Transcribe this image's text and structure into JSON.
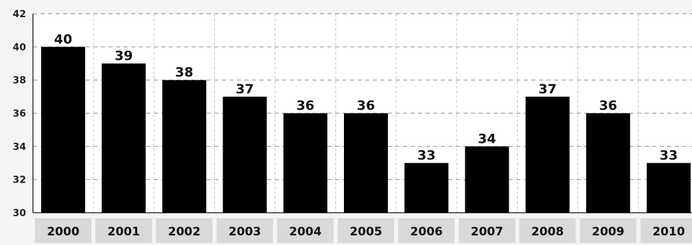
{
  "chart_data": {
    "type": "bar",
    "categories": [
      "2000",
      "2001",
      "2002",
      "2003",
      "2004",
      "2005",
      "2006",
      "2007",
      "2008",
      "2009",
      "2010"
    ],
    "values": [
      40,
      39,
      38,
      37,
      36,
      36,
      33,
      34,
      37,
      36,
      33
    ],
    "data_labels": [
      "40",
      "39",
      "38",
      "37",
      "36",
      "36",
      "33",
      "34",
      "37",
      "36",
      "33"
    ],
    "title": "",
    "xlabel": "",
    "ylabel": "",
    "ylim": [
      30,
      42
    ],
    "yticks": [
      "30",
      "32",
      "34",
      "36",
      "38",
      "40",
      "42"
    ],
    "grid": true,
    "bar_color": "#000000"
  }
}
